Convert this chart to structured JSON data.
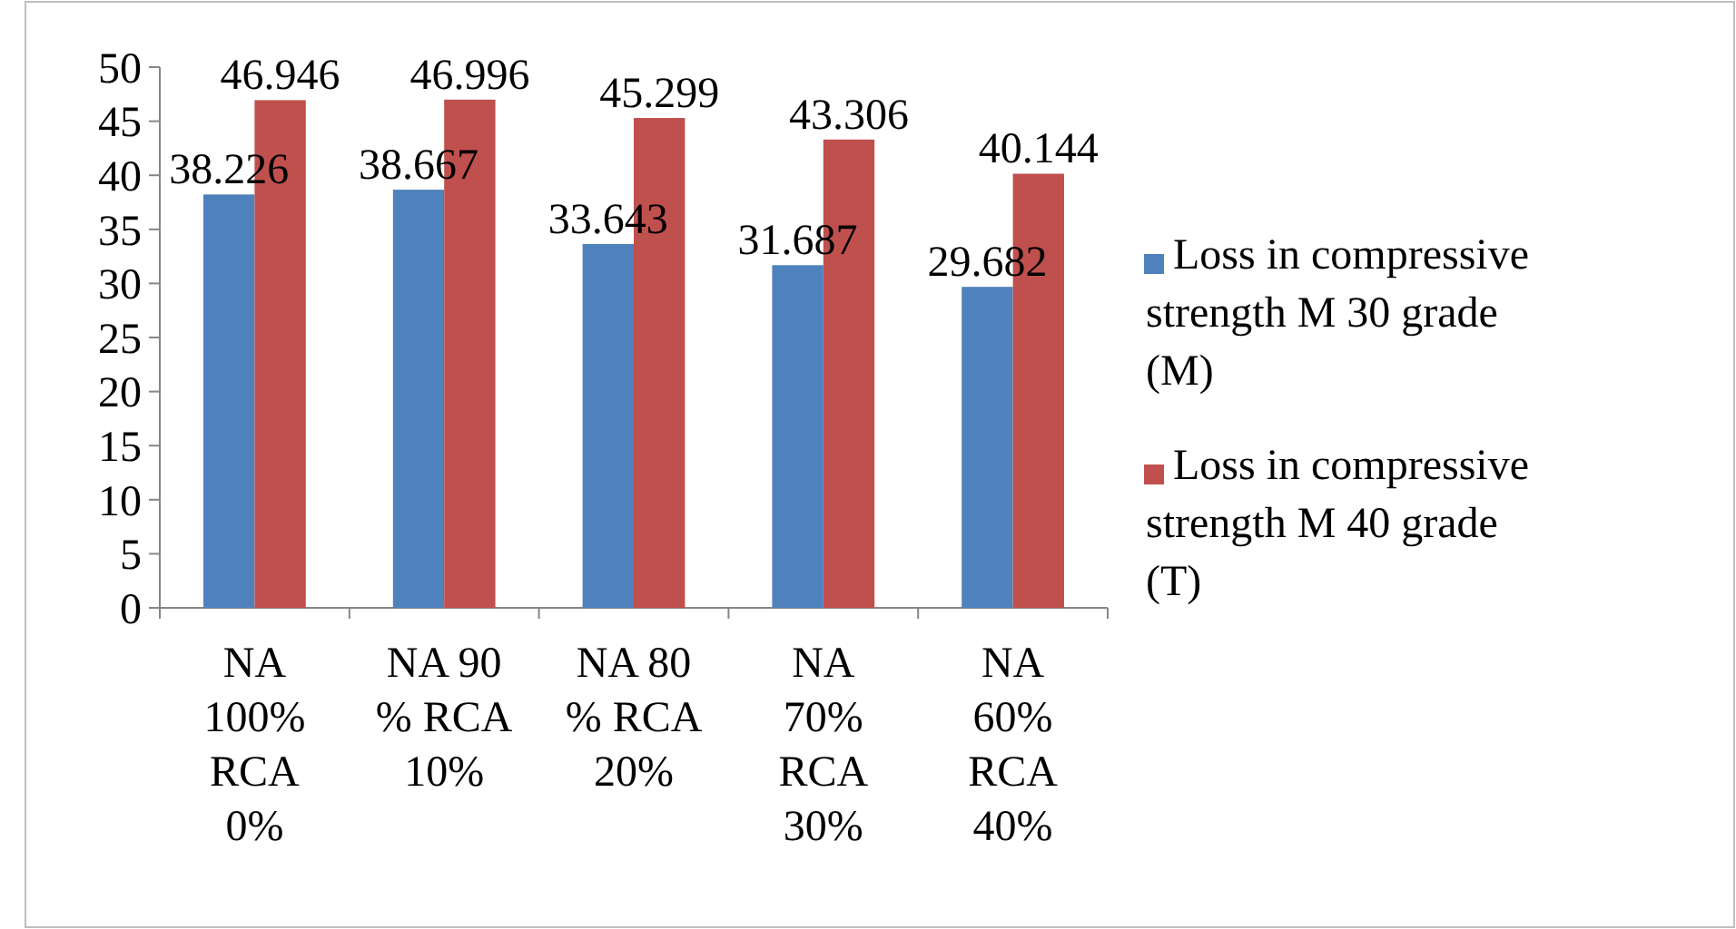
{
  "chart_data": {
    "type": "bar",
    "categories": [
      "NA 100% RCA 0%",
      "NA 90 % RCA 10%",
      "NA 80 % RCA 20%",
      "NA 70% RCA 30%",
      "NA 60% RCA 40%"
    ],
    "series": [
      {
        "name": "Loss in compressive strength M 30 grade (M)",
        "color": "#4f81bd",
        "values": [
          38.226,
          38.667,
          33.643,
          31.687,
          29.682
        ]
      },
      {
        "name": "Loss in compressive strength M 40 grade (T)",
        "color": "#c0504d",
        "values": [
          46.946,
          46.996,
          45.299,
          43.306,
          40.144
        ]
      }
    ],
    "ylim": [
      0,
      50
    ],
    "yticks": [
      0,
      5,
      10,
      15,
      20,
      25,
      30,
      35,
      40,
      45,
      50
    ],
    "data_labels": true,
    "legend": "right",
    "grid": false
  }
}
